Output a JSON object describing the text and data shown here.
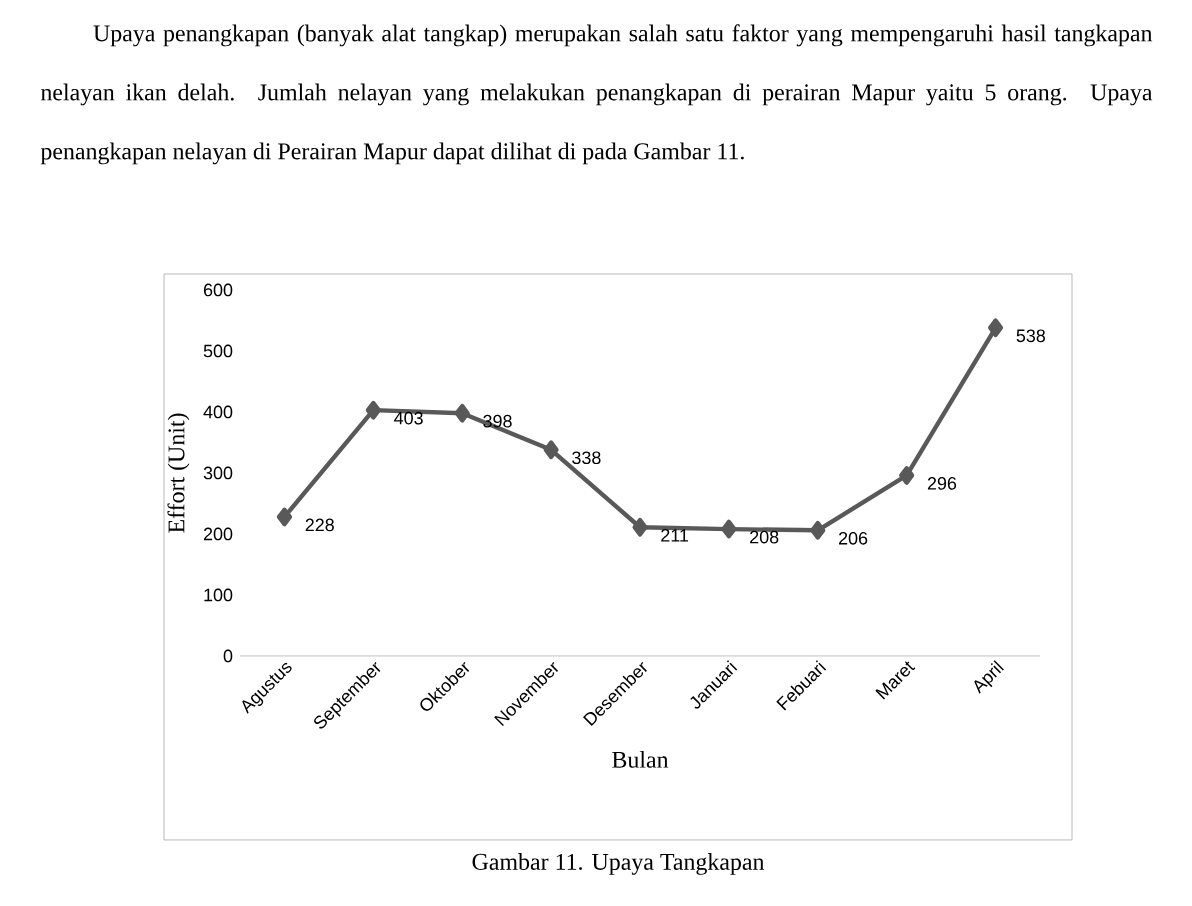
{
  "chart_data": {
    "type": "line",
    "xlabel": "Bulan",
    "ylabel": "Effort (Unit)",
    "categories": [
      "Agustus",
      "September",
      "Oktober",
      "November",
      "Desember",
      "Januari",
      "Febuari",
      "Maret",
      "April"
    ],
    "values": [
      228,
      403,
      398,
      338,
      211,
      208,
      206,
      296,
      538
    ],
    "color": "#595959",
    "marker": "diamond",
    "line_style": "solid",
    "data_labels": true,
    "ylim": [
      0,
      600
    ],
    "yticks": [
      0,
      100,
      200,
      300,
      400,
      500,
      600
    ],
    "grid": false,
    "annotations": [
      "Upaya penangkapan (banyak alat tangkap) merupakan salah satu faktor yang mempengaruhi hasil tangkapan nelayan ikan delah. Jumlah nelayan yang melakukan penangkapan di perairan Mapur yaitu 5 orang. Upaya penangkapan nelayan di Perairan Mapur dapat dilihat di pada Gambar 11.",
      "Gambar 11. Upaya Tangkapan"
    ]
  }
}
